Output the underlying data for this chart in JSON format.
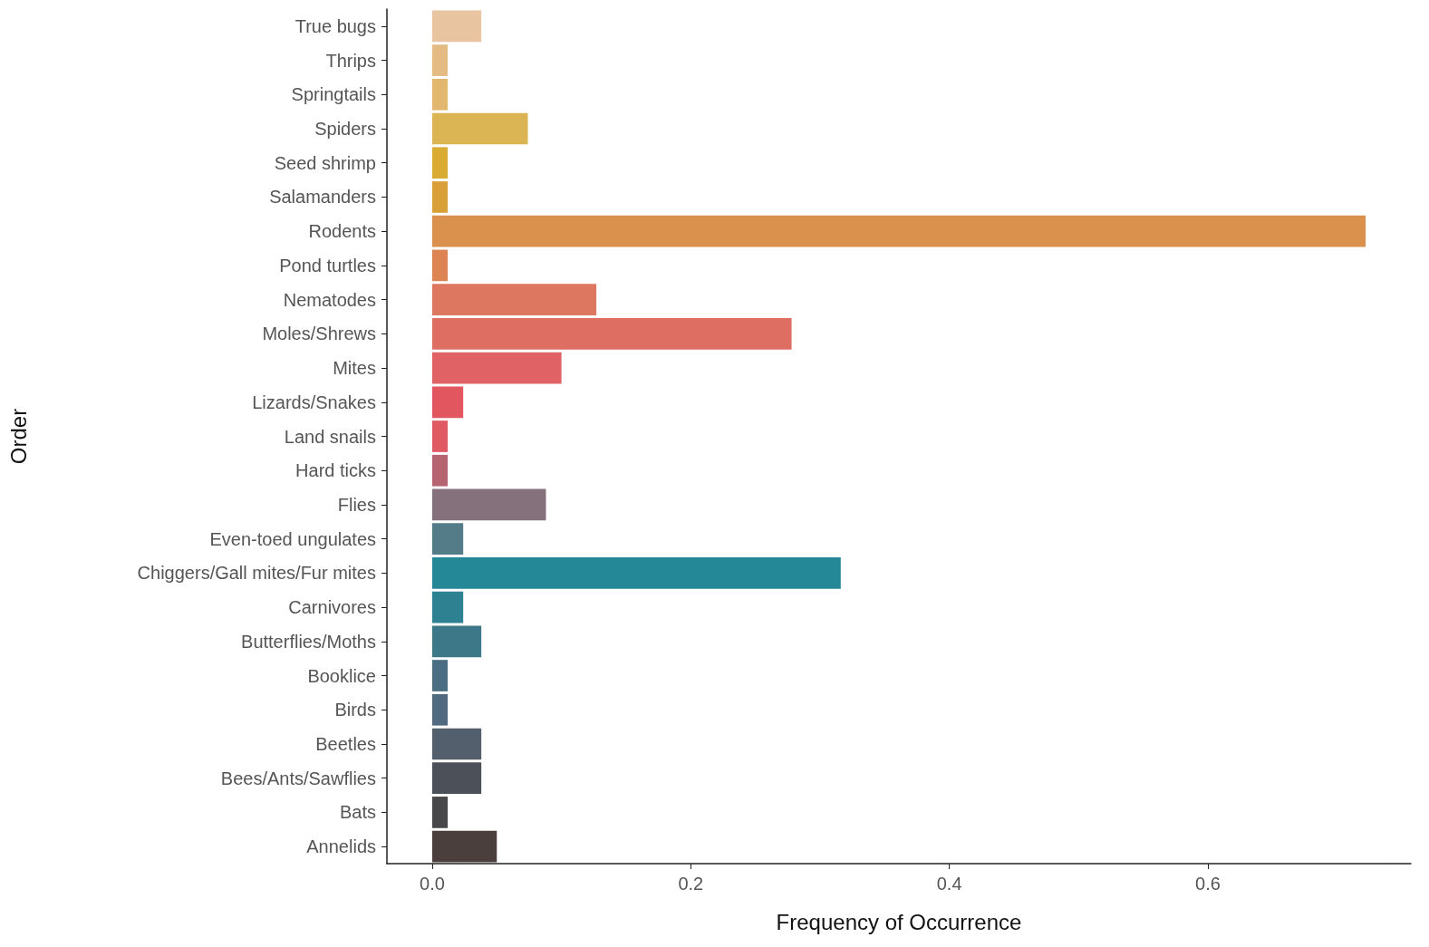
{
  "chart_data": {
    "type": "bar",
    "orientation": "horizontal",
    "xlabel": "Frequency of Occurrence",
    "ylabel": "Order",
    "categories": [
      "True bugs",
      "Thrips",
      "Springtails",
      "Spiders",
      "Seed shrimp",
      "Salamanders",
      "Rodents",
      "Pond turtles",
      "Nematodes",
      "Moles/Shrews",
      "Mites",
      "Lizards/Snakes",
      "Land snails",
      "Hard ticks",
      "Flies",
      "Even-toed ungulates",
      "Chiggers/Gall mites/Fur mites",
      "Carnivores",
      "Butterflies/Moths",
      "Booklice",
      "Birds",
      "Beetles",
      "Bees/Ants/Sawflies",
      "Bats",
      "Annelids"
    ],
    "values": [
      0.038,
      0.012,
      0.012,
      0.074,
      0.012,
      0.012,
      0.722,
      0.012,
      0.127,
      0.278,
      0.1,
      0.024,
      0.012,
      0.012,
      0.088,
      0.024,
      0.316,
      0.024,
      0.038,
      0.012,
      0.012,
      0.038,
      0.038,
      0.012,
      0.05
    ],
    "colors": [
      "#e8c4a0",
      "#e4bb82",
      "#e2b870",
      "#dbb553",
      "#d9ab33",
      "#d9a03a",
      "#d9914d",
      "#dc8454",
      "#de7760",
      "#df6e62",
      "#e06264",
      "#e2575f",
      "#e05a63",
      "#b66472",
      "#85717c",
      "#537b88",
      "#258896",
      "#2d8191",
      "#3d7888",
      "#4b6e83",
      "#516a80",
      "#545f6e",
      "#4c5058",
      "#48474a",
      "#4a3f3c"
    ],
    "xlim": [
      -0.035,
      0.757
    ],
    "xticks": [
      {
        "value": 0,
        "label": "0.0"
      },
      0.2,
      0.4,
      0.6
    ],
    "grid": false
  }
}
